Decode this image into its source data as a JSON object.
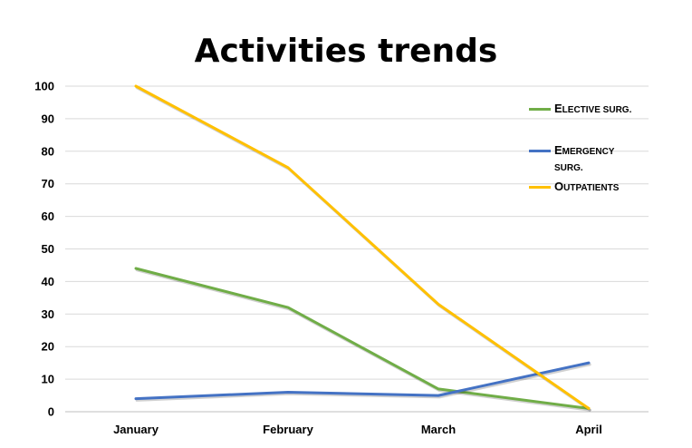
{
  "chart_data": {
    "type": "line",
    "title": "Activities trends",
    "xlabel": "",
    "ylabel": "",
    "categories": [
      "January",
      "February",
      "March",
      "April"
    ],
    "ylim": [
      0,
      100
    ],
    "yticks": [
      "0",
      "10",
      "20",
      "30",
      "40",
      "50",
      "60",
      "70",
      "80",
      "90",
      "100"
    ],
    "grid": true,
    "legend_position": "right",
    "series": [
      {
        "name": "Elective surg.",
        "color": "#70ad47",
        "values": [
          44,
          32,
          7,
          1
        ]
      },
      {
        "name": "Emergency surg.",
        "color": "#4472c4",
        "values": [
          4,
          6,
          5,
          15
        ]
      },
      {
        "name": "Outpatients",
        "color": "#ffc000",
        "values": [
          100,
          75,
          33,
          1
        ]
      }
    ]
  }
}
